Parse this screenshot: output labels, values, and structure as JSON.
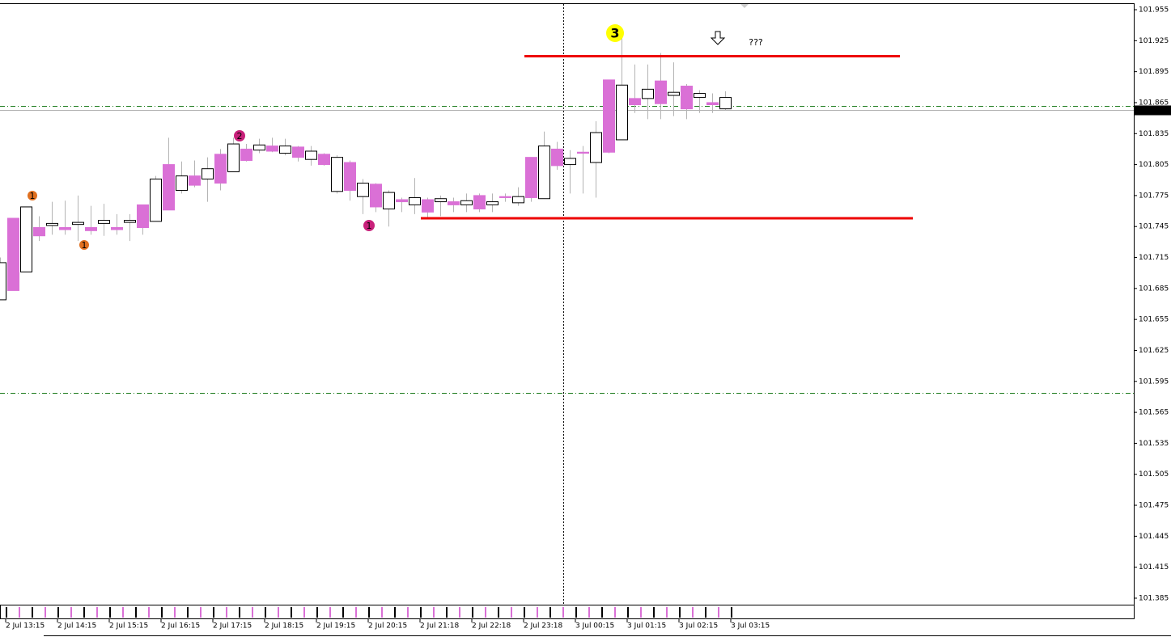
{
  "chart_data": {
    "type": "candlestick",
    "categories": [
      "2 Jul 13:15",
      null,
      null,
      null,
      "2 Jul 14:15",
      null,
      null,
      null,
      "2 Jul 15:15",
      null,
      null,
      null,
      "2 Jul 16:15",
      null,
      null,
      null,
      "2 Jul 17:15",
      null,
      null,
      null,
      "2 Jul 18:15",
      null,
      null,
      null,
      "2 Jul 19:15",
      null,
      null,
      null,
      "2 Jul 20:15",
      null,
      null,
      null,
      "2 Jul 21:18",
      null,
      null,
      null,
      "2 Jul 22:18",
      null,
      null,
      null,
      "2 Jul 23:18",
      null,
      null,
      null,
      "3 Jul 00:15",
      null,
      null,
      null,
      "3 Jul 01:15",
      null,
      null,
      null,
      "3 Jul 02:15",
      null,
      null,
      null,
      "3 Jul 03:15"
    ],
    "open": [
      101.674,
      101.753,
      101.701,
      101.744,
      101.746,
      101.744,
      101.747,
      101.744,
      101.748,
      101.744,
      101.749,
      101.766,
      101.75,
      101.805,
      101.78,
      101.794,
      101.791,
      101.815,
      101.798,
      101.82,
      101.819,
      101.823,
      101.816,
      101.822,
      101.81,
      101.815,
      101.779,
      101.807,
      101.774,
      101.786,
      101.762,
      101.771,
      101.766,
      101.771,
      101.769,
      101.769,
      101.766,
      101.775,
      101.766,
      101.774,
      101.768,
      101.812,
      101.772,
      101.82,
      101.805,
      101.817,
      101.807,
      101.887,
      101.829,
      101.869,
      101.869,
      101.886,
      101.872,
      101.881,
      101.87,
      101.865,
      101.859
    ],
    "high": [
      101.715,
      101.753,
      101.764,
      101.755,
      101.769,
      101.77,
      101.775,
      101.765,
      101.767,
      101.757,
      101.757,
      101.766,
      101.794,
      101.831,
      101.808,
      101.809,
      101.812,
      101.82,
      101.831,
      101.825,
      101.83,
      101.831,
      101.83,
      101.823,
      101.823,
      101.816,
      101.814,
      101.809,
      101.791,
      101.787,
      101.78,
      101.773,
      101.792,
      101.773,
      101.775,
      101.773,
      101.777,
      101.777,
      101.777,
      101.777,
      101.783,
      101.812,
      101.837,
      101.827,
      101.819,
      101.823,
      101.847,
      101.887,
      101.928,
      101.902,
      101.902,
      101.913,
      101.904,
      101.883,
      101.877,
      101.874,
      101.876
    ],
    "low": [
      101.674,
      101.683,
      101.701,
      101.731,
      101.737,
      101.737,
      101.731,
      101.737,
      101.736,
      101.737,
      101.731,
      101.737,
      101.75,
      101.761,
      101.777,
      101.783,
      101.769,
      101.78,
      101.798,
      101.808,
      101.816,
      101.817,
      101.814,
      101.808,
      101.804,
      101.804,
      101.777,
      101.77,
      101.757,
      101.759,
      101.745,
      101.759,
      101.757,
      101.753,
      101.755,
      101.759,
      101.759,
      101.759,
      101.759,
      101.769,
      101.765,
      101.769,
      101.772,
      101.8,
      101.777,
      101.777,
      101.773,
      101.816,
      101.829,
      101.855,
      101.849,
      101.849,
      101.852,
      101.849,
      101.855,
      101.855,
      101.857
    ],
    "close": [
      101.71,
      101.683,
      101.764,
      101.736,
      101.748,
      101.742,
      101.749,
      101.741,
      101.751,
      101.742,
      101.751,
      101.744,
      101.791,
      101.761,
      101.794,
      101.785,
      101.801,
      101.787,
      101.825,
      101.809,
      101.824,
      101.818,
      101.823,
      101.812,
      101.818,
      101.805,
      101.812,
      101.78,
      101.787,
      101.764,
      101.778,
      101.769,
      101.773,
      101.759,
      101.772,
      101.766,
      101.77,
      101.762,
      101.769,
      101.773,
      101.774,
      101.773,
      101.823,
      101.804,
      101.811,
      101.816,
      101.836,
      101.817,
      101.882,
      101.863,
      101.878,
      101.864,
      101.875,
      101.859,
      101.874,
      101.863,
      101.87
    ],
    "up_color": "#ffffff",
    "down_color": "#da70d6",
    "wick_color": "#b4b4b4",
    "ylim": [
      101.3795,
      101.9605
    ],
    "yticks": [
      101.955,
      101.925,
      101.895,
      101.865,
      101.835,
      101.805,
      101.775,
      101.745,
      101.715,
      101.685,
      101.655,
      101.625,
      101.595,
      101.565,
      101.535,
      101.505,
      101.475,
      101.445,
      101.415,
      101.385
    ],
    "last_price": 101.858,
    "levels": [
      {
        "value": 101.91,
        "color": "#ee0000"
      },
      {
        "value": 101.753,
        "color": "#ee0000"
      }
    ],
    "dashed_levels": [
      101.862,
      101.584
    ],
    "annotations": [
      {
        "label": "3",
        "color": "#ffff00",
        "text_color": "#d02090"
      },
      {
        "label": "???"
      },
      {
        "label": "1",
        "color": "#e07020",
        "text_color": "#ffffff"
      },
      {
        "label": "1",
        "color": "#e07020",
        "text_color": "#ffffff"
      },
      {
        "label": "2",
        "color": "#c8207a",
        "text_color": "#ffffff"
      },
      {
        "label": "1",
        "color": "#c8207a",
        "text_color": "#ffffff"
      }
    ]
  }
}
